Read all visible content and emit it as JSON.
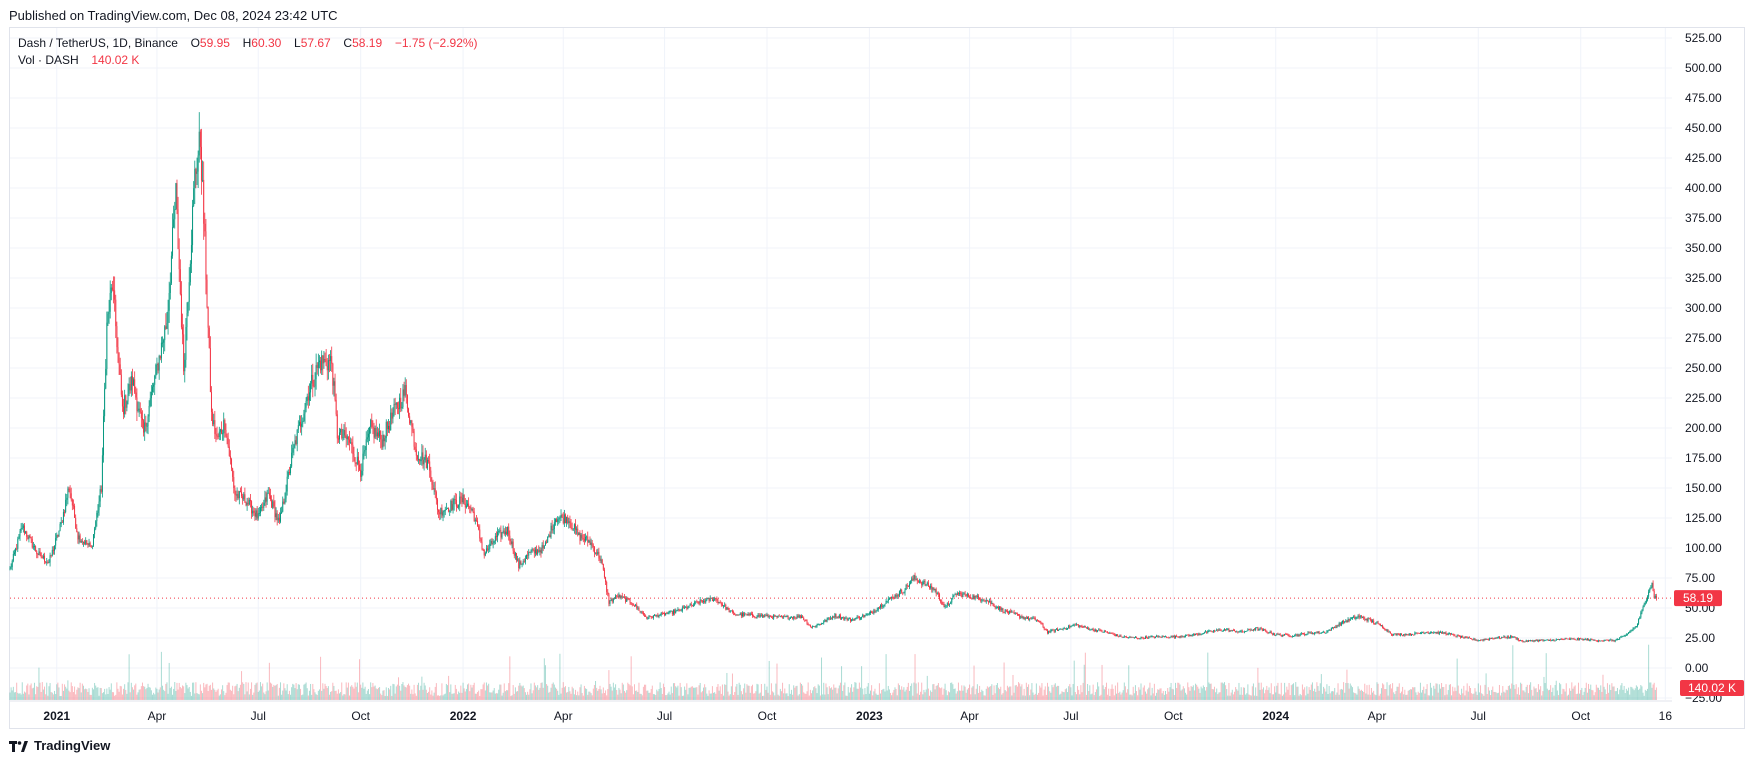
{
  "header": {
    "published": "Published on TradingView.com, Dec 08, 2024 23:42 UTC"
  },
  "legend": {
    "symbol": "Dash / TetherUS, 1D, Binance",
    "open_label": "O",
    "open": "59.95",
    "high_label": "H",
    "high": "60.30",
    "low_label": "L",
    "low": "57.67",
    "close_label": "C",
    "close": "58.19",
    "change": "−1.75 (−2.92%)",
    "vol_label": "Vol · DASH",
    "vol_value": "140.02 K"
  },
  "footer": {
    "brand": "TradingView"
  },
  "colors": {
    "up": "#089981",
    "down": "#f23645",
    "grid": "#f0f3fa",
    "text": "#131722",
    "border": "#e0e3eb"
  },
  "chart_data": {
    "type": "candlestick",
    "y_axis": {
      "ticks": [
        "525.00",
        "500.00",
        "475.00",
        "450.00",
        "425.00",
        "400.00",
        "375.00",
        "350.00",
        "325.00",
        "300.00",
        "275.00",
        "250.00",
        "225.00",
        "200.00",
        "175.00",
        "150.00",
        "125.00",
        "100.00",
        "75.00",
        "50.00",
        "25.00",
        "0.00",
        "−25.00"
      ],
      "range": [
        -25,
        530
      ]
    },
    "x_axis": {
      "ticks": [
        {
          "label": "2021",
          "date": "2021-01-01",
          "bold": true
        },
        {
          "label": "Apr",
          "date": "2021-04-01"
        },
        {
          "label": "Jul",
          "date": "2021-07-01"
        },
        {
          "label": "Oct",
          "date": "2021-10-01"
        },
        {
          "label": "2022",
          "date": "2022-01-01",
          "bold": true
        },
        {
          "label": "Apr",
          "date": "2022-04-01"
        },
        {
          "label": "Jul",
          "date": "2022-07-01"
        },
        {
          "label": "Oct",
          "date": "2022-10-01"
        },
        {
          "label": "2023",
          "date": "2023-01-01",
          "bold": true
        },
        {
          "label": "Apr",
          "date": "2023-04-01"
        },
        {
          "label": "Jul",
          "date": "2023-07-01"
        },
        {
          "label": "Oct",
          "date": "2023-10-01"
        },
        {
          "label": "2024",
          "date": "2024-01-01",
          "bold": true
        },
        {
          "label": "Apr",
          "date": "2024-04-01"
        },
        {
          "label": "Jul",
          "date": "2024-07-01"
        },
        {
          "label": "Oct",
          "date": "2024-10-01"
        },
        {
          "label": "16",
          "date": "2024-12-16"
        }
      ],
      "range": [
        "2020-11-20",
        "2024-12-22"
      ]
    },
    "last_price": {
      "value": 58.19,
      "label": "58.19"
    },
    "last_volume": {
      "label": "140.02 K"
    },
    "price_path": [
      [
        "2020-11-20",
        82
      ],
      [
        "2020-12-01",
        118
      ],
      [
        "2020-12-15",
        95
      ],
      [
        "2020-12-25",
        88
      ],
      [
        "2021-01-05",
        120
      ],
      [
        "2021-01-12",
        152
      ],
      [
        "2021-01-20",
        110
      ],
      [
        "2021-02-01",
        100
      ],
      [
        "2021-02-10",
        150
      ],
      [
        "2021-02-15",
        285
      ],
      [
        "2021-02-20",
        320
      ],
      [
        "2021-03-01",
        215
      ],
      [
        "2021-03-10",
        240
      ],
      [
        "2021-03-20",
        195
      ],
      [
        "2021-04-01",
        250
      ],
      [
        "2021-04-10",
        290
      ],
      [
        "2021-04-18",
        395
      ],
      [
        "2021-04-25",
        250
      ],
      [
        "2021-05-05",
        410
      ],
      [
        "2021-05-10",
        440
      ],
      [
        "2021-05-15",
        330
      ],
      [
        "2021-05-20",
        210
      ],
      [
        "2021-05-25",
        190
      ],
      [
        "2021-06-01",
        205
      ],
      [
        "2021-06-10",
        145
      ],
      [
        "2021-06-20",
        140
      ],
      [
        "2021-07-01",
        125
      ],
      [
        "2021-07-10",
        145
      ],
      [
        "2021-07-20",
        120
      ],
      [
        "2021-08-01",
        180
      ],
      [
        "2021-08-15",
        230
      ],
      [
        "2021-08-25",
        255
      ],
      [
        "2021-09-05",
        255
      ],
      [
        "2021-09-10",
        195
      ],
      [
        "2021-09-20",
        190
      ],
      [
        "2021-10-01",
        165
      ],
      [
        "2021-10-10",
        200
      ],
      [
        "2021-10-20",
        190
      ],
      [
        "2021-11-01",
        215
      ],
      [
        "2021-11-10",
        230
      ],
      [
        "2021-11-20",
        180
      ],
      [
        "2021-12-01",
        170
      ],
      [
        "2021-12-10",
        130
      ],
      [
        "2021-12-20",
        135
      ],
      [
        "2022-01-01",
        140
      ],
      [
        "2022-01-10",
        130
      ],
      [
        "2022-01-20",
        95
      ],
      [
        "2022-02-01",
        110
      ],
      [
        "2022-02-10",
        115
      ],
      [
        "2022-02-20",
        85
      ],
      [
        "2022-03-01",
        95
      ],
      [
        "2022-03-15",
        100
      ],
      [
        "2022-03-25",
        125
      ],
      [
        "2022-04-05",
        125
      ],
      [
        "2022-04-15",
        110
      ],
      [
        "2022-04-25",
        105
      ],
      [
        "2022-05-05",
        90
      ],
      [
        "2022-05-12",
        55
      ],
      [
        "2022-05-20",
        60
      ],
      [
        "2022-06-01",
        55
      ],
      [
        "2022-06-15",
        42
      ],
      [
        "2022-07-01",
        45
      ],
      [
        "2022-07-15",
        48
      ],
      [
        "2022-08-01",
        55
      ],
      [
        "2022-08-15",
        58
      ],
      [
        "2022-09-01",
        45
      ],
      [
        "2022-09-15",
        44
      ],
      [
        "2022-10-01",
        43
      ],
      [
        "2022-10-15",
        42
      ],
      [
        "2022-11-01",
        43
      ],
      [
        "2022-11-10",
        34
      ],
      [
        "2022-11-20",
        38
      ],
      [
        "2022-12-01",
        44
      ],
      [
        "2022-12-15",
        40
      ],
      [
        "2023-01-01",
        45
      ],
      [
        "2023-01-15",
        55
      ],
      [
        "2023-02-01",
        65
      ],
      [
        "2023-02-10",
        75
      ],
      [
        "2023-02-20",
        70
      ],
      [
        "2023-03-01",
        65
      ],
      [
        "2023-03-10",
        50
      ],
      [
        "2023-03-20",
        62
      ],
      [
        "2023-04-01",
        60
      ],
      [
        "2023-04-15",
        57
      ],
      [
        "2023-05-01",
        48
      ],
      [
        "2023-05-20",
        42
      ],
      [
        "2023-06-01",
        40
      ],
      [
        "2023-06-10",
        30
      ],
      [
        "2023-06-25",
        33
      ],
      [
        "2023-07-05",
        36
      ],
      [
        "2023-07-20",
        32
      ],
      [
        "2023-08-01",
        30
      ],
      [
        "2023-08-15",
        26
      ],
      [
        "2023-09-01",
        25
      ],
      [
        "2023-09-15",
        26
      ],
      [
        "2023-10-01",
        26
      ],
      [
        "2023-10-15",
        27
      ],
      [
        "2023-11-01",
        30
      ],
      [
        "2023-11-15",
        32
      ],
      [
        "2023-12-01",
        30
      ],
      [
        "2023-12-15",
        33
      ],
      [
        "2024-01-01",
        28
      ],
      [
        "2024-01-15",
        27
      ],
      [
        "2024-02-01",
        29
      ],
      [
        "2024-02-15",
        30
      ],
      [
        "2024-03-01",
        38
      ],
      [
        "2024-03-15",
        43
      ],
      [
        "2024-03-25",
        40
      ],
      [
        "2024-04-05",
        35
      ],
      [
        "2024-04-15",
        28
      ],
      [
        "2024-05-01",
        28
      ],
      [
        "2024-05-15",
        30
      ],
      [
        "2024-06-01",
        29
      ],
      [
        "2024-06-15",
        26
      ],
      [
        "2024-07-01",
        23
      ],
      [
        "2024-07-15",
        25
      ],
      [
        "2024-08-01",
        26
      ],
      [
        "2024-08-10",
        22
      ],
      [
        "2024-08-20",
        23
      ],
      [
        "2024-09-01",
        23
      ],
      [
        "2024-09-15",
        24
      ],
      [
        "2024-10-01",
        24
      ],
      [
        "2024-10-15",
        23
      ],
      [
        "2024-11-01",
        23
      ],
      [
        "2024-11-10",
        27
      ],
      [
        "2024-11-20",
        35
      ],
      [
        "2024-11-28",
        55
      ],
      [
        "2024-12-01",
        65
      ],
      [
        "2024-12-04",
        70
      ],
      [
        "2024-12-06",
        60
      ],
      [
        "2024-12-08",
        58
      ]
    ]
  }
}
